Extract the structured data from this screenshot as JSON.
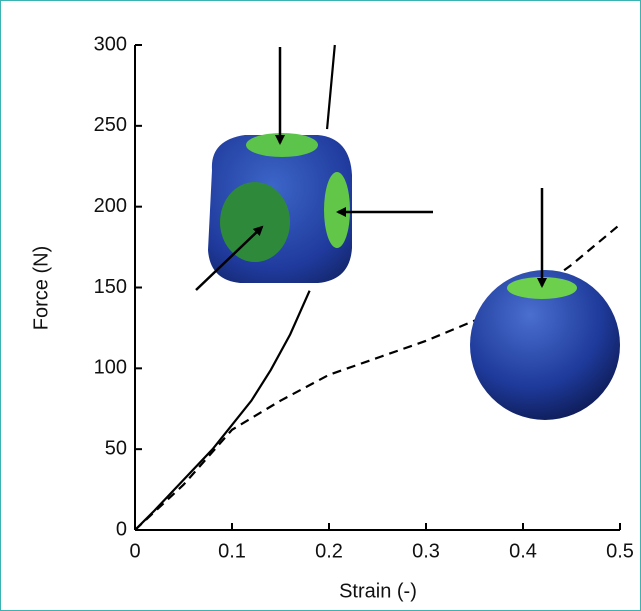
{
  "chart_data": {
    "type": "line",
    "xlabel": "Strain (-)",
    "ylabel": "Force (N)",
    "xlim": [
      0,
      0.5
    ],
    "xticks": [
      0,
      0.1,
      0.2,
      0.3,
      0.4,
      0.5
    ],
    "ylim": [
      0,
      300
    ],
    "yticks": [
      0,
      50,
      100,
      150,
      200,
      250,
      300
    ],
    "series": [
      {
        "color": "#000000",
        "dash": "solid",
        "x": [
          0,
          0.02,
          0.05,
          0.08,
          0.1,
          0.12,
          0.14,
          0.16,
          0.18,
          null,
          0.198,
          0.206
        ],
        "values": [
          0,
          12,
          31,
          50,
          65,
          80,
          99,
          121,
          148,
          null,
          248,
          300
        ]
      },
      {
        "color": "#000000",
        "dash": "dashed",
        "x": [
          0,
          0.05,
          0.1,
          0.15,
          0.2,
          0.3,
          0.4,
          0.45,
          0.5
        ],
        "values": [
          0,
          28,
          62,
          80,
          96,
          117,
          142,
          164,
          189
        ]
      }
    ]
  }
}
